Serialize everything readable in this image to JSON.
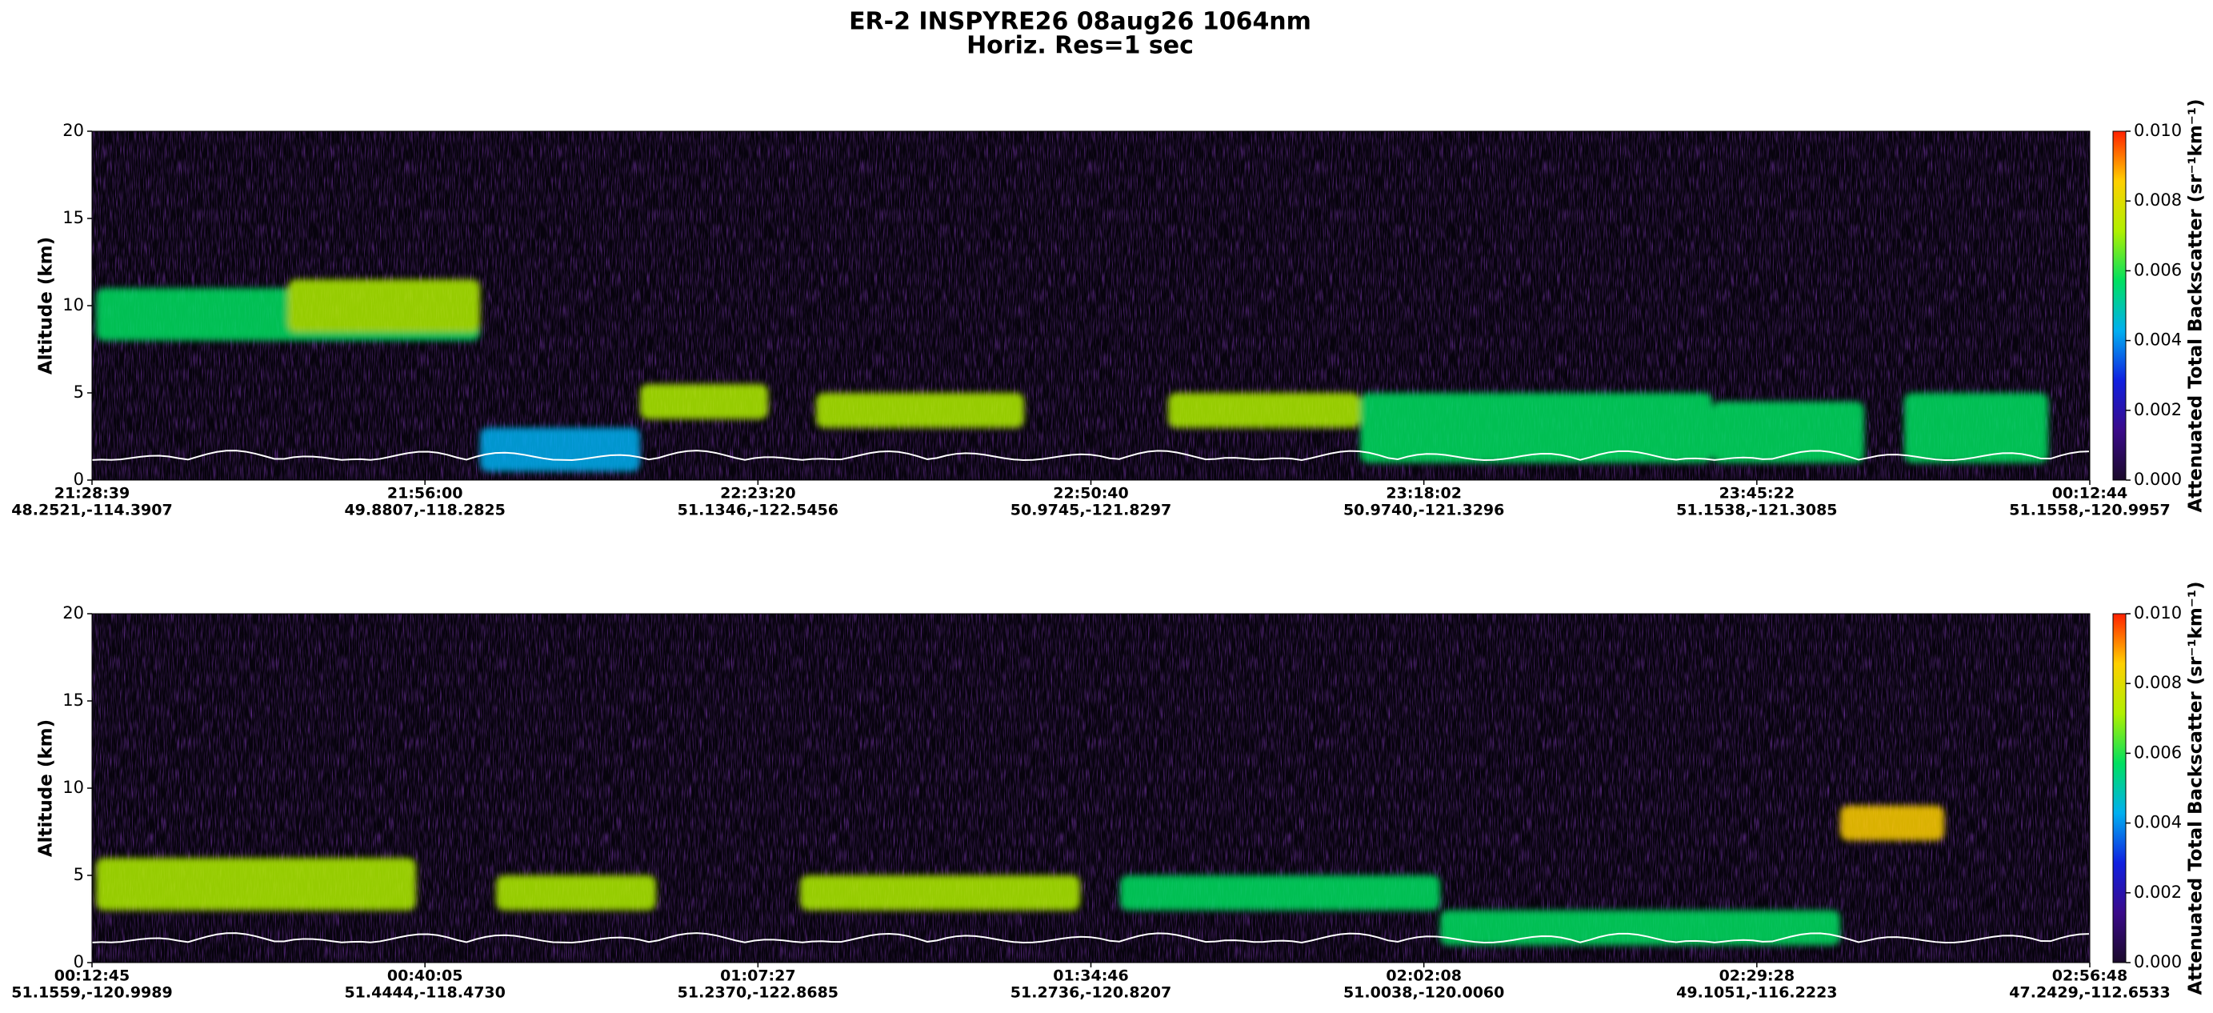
{
  "suptitle": [
    "ER-2  INSPYRE26  08aug26  1064nm",
    "Horiz. Res=1 sec"
  ],
  "chart_data": [
    {
      "type": "heatmap",
      "ylabel": "Altitude (km)",
      "ylim": [
        0,
        20
      ],
      "yticks": [
        0,
        5,
        10,
        15,
        20
      ],
      "xtick_labels": [
        [
          "21:28:39",
          "48.2521,-114.3907"
        ],
        [
          "21:56:00",
          "49.8807,-118.2825"
        ],
        [
          "22:23:20",
          "51.1346,-122.5456"
        ],
        [
          "22:50:40",
          "50.9745,-121.8297"
        ],
        [
          "23:18:02",
          "50.9740,-121.3296"
        ],
        [
          "23:45:22",
          "51.1538,-121.3085"
        ],
        [
          "00:12:44",
          "51.1558,-120.9957"
        ]
      ],
      "colorbar": {
        "label": "Attenuated Total Backscatter (sr⁻¹km⁻¹)",
        "lim": [
          0,
          0.01
        ],
        "ticks": [
          {
            "value": 0,
            "label": "0.000"
          },
          {
            "value": 0.002,
            "label": "0.002"
          },
          {
            "value": 0.004,
            "label": "0.004"
          },
          {
            "value": 0.006,
            "label": "0.006"
          },
          {
            "value": 0.008,
            "label": "0.008"
          },
          {
            "value": 0.01,
            "label": "0.010"
          }
        ],
        "colormap": [
          "#1a0a2a",
          "#3a0a8a",
          "#1020e0",
          "#00b0f0",
          "#00e060",
          "#b0f000",
          "#ffd000",
          "#ff2000"
        ]
      }
    },
    {
      "type": "heatmap",
      "ylabel": "Altitude (km)",
      "ylim": [
        0,
        20
      ],
      "yticks": [
        0,
        5,
        10,
        15,
        20
      ],
      "xtick_labels": [
        [
          "00:12:45",
          "51.1559,-120.9989"
        ],
        [
          "00:40:05",
          "51.4444,-118.4730"
        ],
        [
          "01:07:27",
          "51.2370,-122.8685"
        ],
        [
          "01:34:46",
          "51.2736,-120.8207"
        ],
        [
          "02:02:08",
          "51.0038,-120.0060"
        ],
        [
          "02:29:28",
          "49.1051,-116.2223"
        ],
        [
          "02:56:48",
          "47.2429,-112.6533"
        ]
      ],
      "colorbar": {
        "label": "Attenuated Total Backscatter (sr⁻¹km⁻¹)",
        "lim": [
          0,
          0.01
        ],
        "ticks": [
          {
            "value": 0,
            "label": "0.000"
          },
          {
            "value": 0.002,
            "label": "0.002"
          },
          {
            "value": 0.004,
            "label": "0.004"
          },
          {
            "value": 0.006,
            "label": "0.006"
          },
          {
            "value": 0.008,
            "label": "0.008"
          },
          {
            "value": 0.01,
            "label": "0.010"
          }
        ],
        "colormap": [
          "#1a0a2a",
          "#3a0a8a",
          "#1020e0",
          "#00b0f0",
          "#00e060",
          "#b0f000",
          "#ffd000",
          "#ff2000"
        ]
      }
    }
  ]
}
